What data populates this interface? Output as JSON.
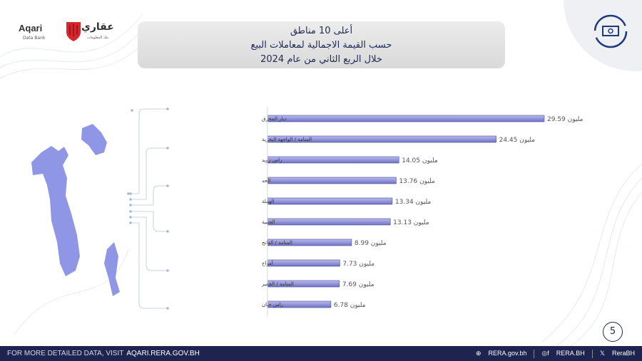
{
  "logo": {
    "name_en": "Aqari",
    "sub_en": "Data Bank",
    "name_ar": "عقاري",
    "sub_ar": "بنك المعلومات"
  },
  "title": {
    "line1": "أعلى 10 مناطق",
    "line2": "حسب القيمة الاجمالية لمعاملات البيع",
    "line3": "خلال الربع  الثاني من عام 2024"
  },
  "corner_icon": "cash-refresh-icon",
  "page_number": "5",
  "footer": {
    "text": "FOR MORE DETAILED DATA, VISIT",
    "url": "AQARI.RERA.GOV.BH",
    "website": "RERA.gov.bh",
    "social": "RERA.BH",
    "x_handle": "ReraBH"
  },
  "colors": {
    "bar": "#6f72c4",
    "bar_light": "#b9bbef",
    "footer": "#1e2350",
    "title_text": "#1f2a55",
    "map": "#8f96e6"
  },
  "chart_data": {
    "type": "bar",
    "orientation": "horizontal",
    "unit": "مليون",
    "categories": [
      "ديار المحرق",
      "المنامة / الواجهة البحرية",
      "راس زويد",
      "الحد",
      "الهملة",
      "الجنبية",
      "المنامة / الفاتح",
      "أمواج",
      "المنامة / الجفير",
      "راس حيان"
    ],
    "values": [
      29.59,
      24.45,
      14.05,
      13.76,
      13.34,
      13.13,
      8.99,
      7.73,
      7.69,
      6.78
    ],
    "data_labels": [
      "29.59 مليون",
      "24.45 مليون",
      "14.05 مليون",
      "13.76 مليون",
      "13.34 مليون",
      "13.13 مليون",
      "8.99 مليون",
      "7.73 مليون",
      "7.69 مليون",
      "6.78 مليون"
    ],
    "grid": false
  }
}
